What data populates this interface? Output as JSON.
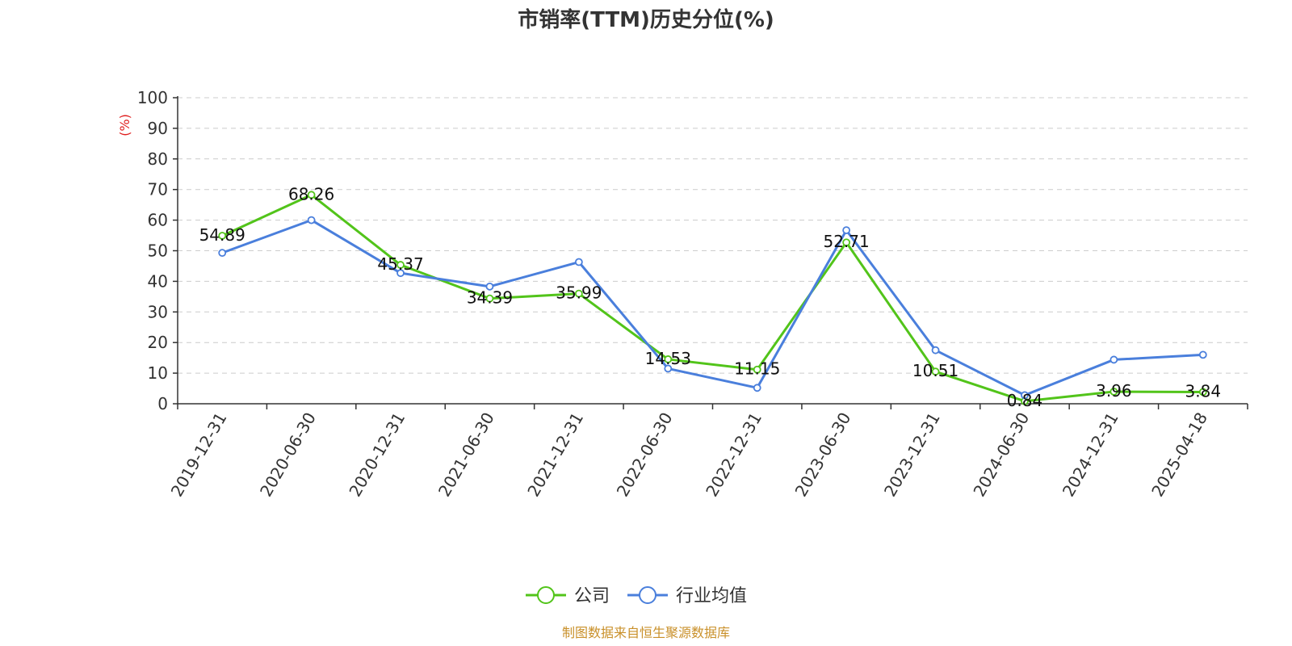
{
  "chart_data": {
    "type": "line",
    "title": "市销率(TTM)历史分位(%)",
    "ylabel": "(%)",
    "ylim": [
      0,
      100
    ],
    "yticks": [
      0,
      10,
      20,
      30,
      40,
      50,
      60,
      70,
      80,
      90,
      100
    ],
    "categories": [
      "2019-12-31",
      "2020-06-30",
      "2020-12-31",
      "2021-06-30",
      "2021-12-31",
      "2022-06-30",
      "2022-12-31",
      "2023-06-30",
      "2023-12-31",
      "2024-06-30",
      "2024-12-31",
      "2025-04-18"
    ],
    "series": [
      {
        "name": "公司",
        "color": "#52c41a",
        "values": [
          54.89,
          68.26,
          45.37,
          34.39,
          35.99,
          14.53,
          11.15,
          52.71,
          10.51,
          0.84,
          3.96,
          3.84
        ],
        "labels": [
          "54.89",
          "68.26",
          "45.37",
          "34.39",
          "35.99",
          "14.53",
          "11.15",
          "52.71",
          "10.51",
          "0.84",
          "3.96",
          "3.84"
        ]
      },
      {
        "name": "行业均值",
        "color": "#4a7fdc",
        "values": [
          49.3,
          60.0,
          42.7,
          38.3,
          46.3,
          11.5,
          5.2,
          56.7,
          17.5,
          2.8,
          14.4,
          16.0
        ]
      }
    ],
    "grid": true,
    "legend_position": "bottom-center"
  },
  "source_note": "制图数据来自恒生聚源数据库"
}
